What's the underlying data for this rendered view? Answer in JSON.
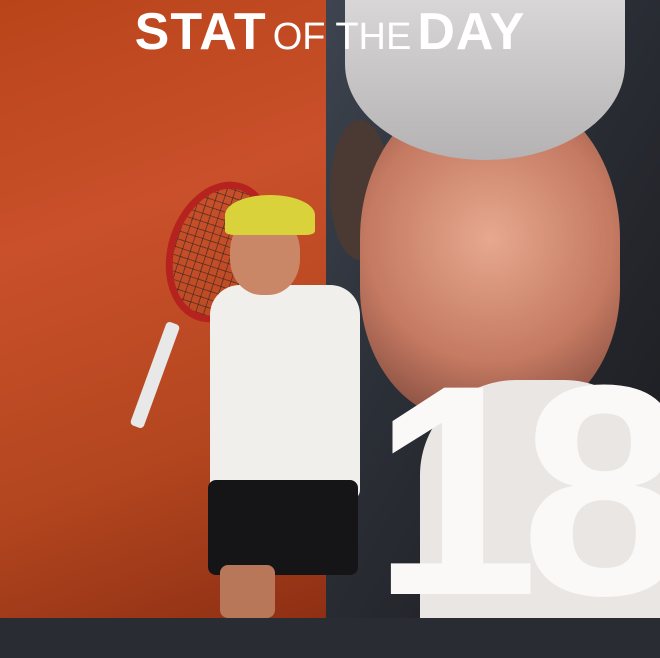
{
  "title": {
    "part1": "STAT",
    "part2": "OF THE",
    "part3": "DAY"
  },
  "stat_value": "18",
  "colors": {
    "left_background": "#c04a22",
    "right_background": "#2b2f37",
    "text": "#ffffff"
  }
}
